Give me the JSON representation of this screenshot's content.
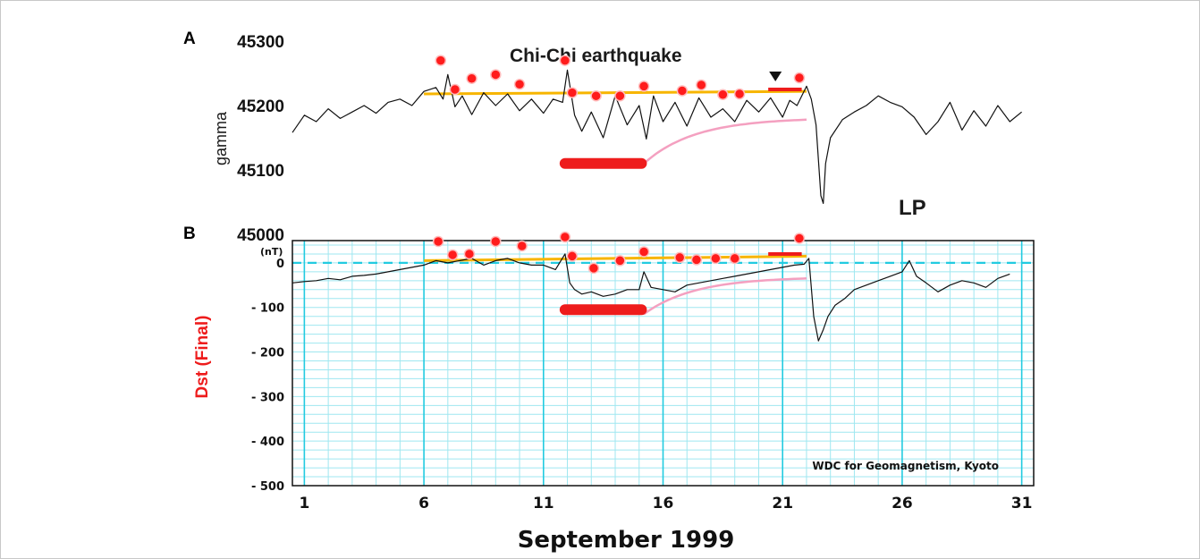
{
  "chart_data": [
    {
      "type": "line",
      "panel_label": "A",
      "title": "Chi-Chi earthquake",
      "ylabel": "gamma",
      "station": "LP",
      "ylim": [
        45000,
        45300
      ],
      "yticks": [
        "45300",
        "45200",
        "45100",
        "45000"
      ],
      "xlim": [
        0.5,
        31.5
      ],
      "series": [
        {
          "x": [
            0.5,
            1,
            1.5,
            2,
            2.5,
            3,
            3.5,
            4,
            4.5,
            5,
            5.5,
            6,
            6.5,
            6.8,
            7,
            7.3,
            7.6,
            8,
            8.5,
            9,
            9.5,
            10,
            10.5,
            11,
            11.4,
            11.8,
            12,
            12.3,
            12.6,
            13,
            13.5,
            14,
            14.5,
            15,
            15.3,
            15.6,
            16,
            16.5,
            17,
            17.5,
            18,
            18.5,
            19,
            19.5,
            20,
            20.5,
            21,
            21.3,
            21.6,
            22,
            22.2,
            22.4,
            22.6,
            22.7,
            22.8,
            23,
            23.5,
            24,
            24.5,
            25,
            25.5,
            26,
            26.5,
            27,
            27.5,
            28,
            28.5,
            29,
            29.5,
            30,
            30.5,
            31
          ],
          "values": [
            45158,
            45185,
            45175,
            45195,
            45180,
            45190,
            45200,
            45188,
            45205,
            45210,
            45200,
            45222,
            45228,
            45210,
            45248,
            45198,
            45215,
            45186,
            45220,
            45200,
            45218,
            45192,
            45210,
            45188,
            45210,
            45205,
            45255,
            45185,
            45160,
            45190,
            45150,
            45215,
            45170,
            45200,
            45148,
            45215,
            45175,
            45205,
            45168,
            45212,
            45182,
            45195,
            45175,
            45208,
            45190,
            45212,
            45182,
            45208,
            45200,
            45230,
            45210,
            45170,
            45060,
            45048,
            45110,
            45150,
            45178,
            45190,
            45200,
            45215,
            45205,
            45198,
            45182,
            45155,
            45175,
            45205,
            45162,
            45192,
            45168,
            45200,
            45175,
            45190
          ]
        }
      ],
      "annotations": {
        "trend_line": {
          "color": "#f7b500",
          "from": {
            "x": 6,
            "y": 45218
          },
          "to": {
            "x": 22,
            "y": 45222
          }
        },
        "recovery_curve": {
          "color": "#f4a0c0",
          "from_x": 15.2,
          "to_x": 22,
          "y_start": 45110,
          "y_end": 45178
        },
        "red_bar": {
          "color": "#ee1c1c",
          "x": [
            11.9,
            15.1
          ],
          "y": 45110
        },
        "earthquake_marker_x": 20.7,
        "short_red_bar": {
          "color": "#ee1c1c",
          "x": [
            20.4,
            21.8
          ],
          "y": 45225
        },
        "red_dots": [
          {
            "x": 6.7,
            "y": 45270
          },
          {
            "x": 7.3,
            "y": 45225
          },
          {
            "x": 8,
            "y": 45242
          },
          {
            "x": 9,
            "y": 45248
          },
          {
            "x": 10,
            "y": 45233
          },
          {
            "x": 11.9,
            "y": 45270
          },
          {
            "x": 12.2,
            "y": 45220
          },
          {
            "x": 13.2,
            "y": 45215
          },
          {
            "x": 14.2,
            "y": 45215
          },
          {
            "x": 15.2,
            "y": 45230
          },
          {
            "x": 16.8,
            "y": 45223
          },
          {
            "x": 17.6,
            "y": 45232
          },
          {
            "x": 18.5,
            "y": 45217
          },
          {
            "x": 19.2,
            "y": 45218
          },
          {
            "x": 21.7,
            "y": 45243
          }
        ]
      }
    },
    {
      "type": "line",
      "panel_label": "B",
      "ylabel": "Dst (Final)",
      "unit": "(nT)",
      "source": "WDC for Geomagnetism, Kyoto",
      "xlabel": "September  1999",
      "ylim": [
        -500,
        50
      ],
      "yticks": [
        "0",
        "-100",
        "-200",
        "-300",
        "-400",
        "-500"
      ],
      "xticks": [
        "1",
        "6",
        "11",
        "16",
        "21",
        "26",
        "31"
      ],
      "xlim": [
        0.5,
        31.5
      ],
      "series": [
        {
          "x": [
            0.5,
            1,
            1.5,
            2,
            2.5,
            3,
            3.5,
            4,
            4.5,
            5,
            5.5,
            6,
            6.5,
            7,
            7.5,
            8,
            8.5,
            9,
            9.5,
            10,
            10.5,
            11,
            11.5,
            11.9,
            12.1,
            12.3,
            12.6,
            13,
            13.5,
            14,
            14.5,
            15,
            15.2,
            15.5,
            16,
            16.5,
            17,
            17.5,
            18,
            18.5,
            19,
            19.5,
            20,
            20.5,
            21,
            21.5,
            21.9,
            22.1,
            22.3,
            22.5,
            22.7,
            22.9,
            23.2,
            23.6,
            24,
            24.5,
            25,
            25.5,
            26,
            26.3,
            26.6,
            27,
            27.5,
            28,
            28.5,
            29,
            29.5,
            30,
            30.5
          ],
          "values": [
            -45,
            -42,
            -40,
            -35,
            -38,
            -30,
            -28,
            -25,
            -20,
            -15,
            -10,
            -5,
            5,
            0,
            5,
            10,
            -5,
            5,
            10,
            0,
            -5,
            -5,
            -15,
            20,
            -45,
            -60,
            -70,
            -65,
            -75,
            -70,
            -60,
            -60,
            -20,
            -55,
            -60,
            -65,
            -50,
            -45,
            -40,
            -35,
            -30,
            -25,
            -20,
            -15,
            -10,
            -5,
            -3,
            10,
            -120,
            -175,
            -150,
            -120,
            -95,
            -80,
            -60,
            -50,
            -40,
            -30,
            -20,
            5,
            -30,
            -45,
            -65,
            -50,
            -40,
            -45,
            -55,
            -35,
            -25
          ]
        }
      ],
      "annotations": {
        "trend_line": {
          "color": "#f7b500",
          "from": {
            "x": 6,
            "y": 5
          },
          "to": {
            "x": 22,
            "y": 15
          }
        },
        "recovery_curve": {
          "color": "#f4a0c0",
          "from_x": 15.2,
          "to_x": 22,
          "y_start": -115,
          "y_end": -35
        },
        "red_bar": {
          "color": "#ee1c1c",
          "x": [
            11.9,
            15.1
          ],
          "y": -105
        },
        "short_red_bar": {
          "color": "#ee1c1c",
          "x": [
            20.4,
            21.8
          ],
          "y": 20
        },
        "red_dots": [
          {
            "x": 6.6,
            "y": 48
          },
          {
            "x": 7.2,
            "y": 18
          },
          {
            "x": 7.9,
            "y": 20
          },
          {
            "x": 9,
            "y": 48
          },
          {
            "x": 10.1,
            "y": 38
          },
          {
            "x": 11.9,
            "y": 58
          },
          {
            "x": 12.2,
            "y": 15
          },
          {
            "x": 13.1,
            "y": -12
          },
          {
            "x": 14.2,
            "y": 5
          },
          {
            "x": 15.2,
            "y": 25
          },
          {
            "x": 16.7,
            "y": 12
          },
          {
            "x": 17.4,
            "y": 7
          },
          {
            "x": 18.2,
            "y": 10
          },
          {
            "x": 19,
            "y": 10
          },
          {
            "x": 21.7,
            "y": 55
          }
        ]
      }
    }
  ]
}
